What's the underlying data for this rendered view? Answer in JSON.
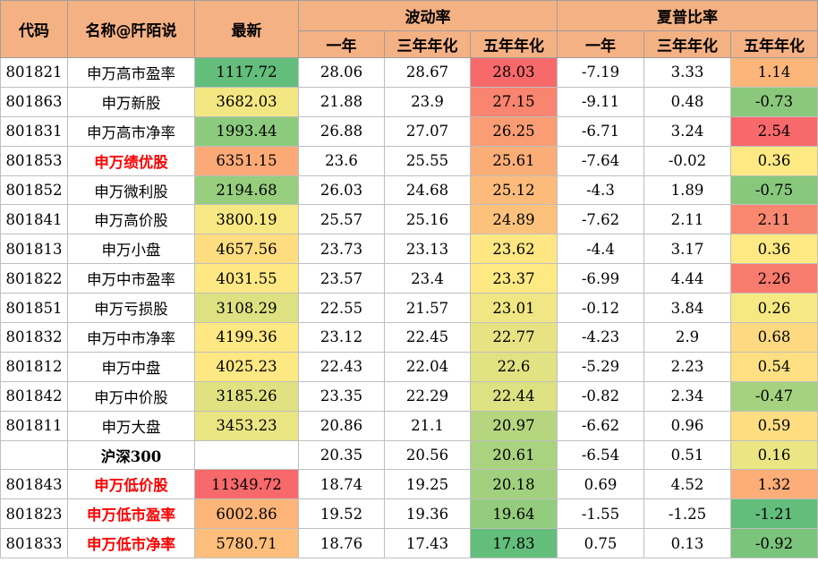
{
  "headers": {
    "code": "代码",
    "name": "名称@阡陌说",
    "latest": "最新",
    "volatility": "波动率",
    "sharpe": "夏普比率",
    "sub": [
      "一年",
      "三年年化",
      "五年年化",
      "一年",
      "三年年化",
      "五年年化"
    ]
  },
  "rows": [
    {
      "code": "801821",
      "name": "申万高市盈率",
      "name_style": "normal",
      "latest": "1117.72",
      "vol_1y": "28.06",
      "vol_3y": "28.67",
      "vol_5y": "28.03",
      "sh_1y": "-7.19",
      "sh_3y": "3.33",
      "sh_5y": "1.14",
      "colors": {
        "latest": "#63be7b",
        "vol_5y": "#f8696b",
        "sh_5y": "#fdb67a"
      }
    },
    {
      "code": "801863",
      "name": "申万新股",
      "name_style": "normal",
      "latest": "3682.03",
      "vol_1y": "21.88",
      "vol_3y": "23.9",
      "vol_5y": "27.15",
      "sh_1y": "-9.11",
      "sh_3y": "0.48",
      "sh_5y": "-0.73",
      "colors": {
        "latest": "#f2e783",
        "vol_5y": "#f9846f",
        "sh_5y": "#8ac97c"
      }
    },
    {
      "code": "801831",
      "name": "申万高市净率",
      "name_style": "normal",
      "latest": "1993.44",
      "vol_1y": "26.88",
      "vol_3y": "27.07",
      "vol_5y": "26.25",
      "sh_1y": "-6.71",
      "sh_3y": "3.24",
      "sh_5y": "2.54",
      "colors": {
        "latest": "#8ccb7d",
        "vol_5y": "#fa9d74",
        "sh_5y": "#f8696b"
      }
    },
    {
      "code": "801853",
      "name": "申万绩优股",
      "name_style": "red",
      "latest": "6351.15",
      "vol_1y": "23.6",
      "vol_3y": "25.55",
      "vol_5y": "25.61",
      "sh_1y": "-7.64",
      "sh_3y": "-0.02",
      "sh_5y": "0.36",
      "colors": {
        "latest": "#fbaa77",
        "vol_5y": "#fbad78",
        "sh_5y": "#fee983"
      }
    },
    {
      "code": "801852",
      "name": "申万微利股",
      "name_style": "normal",
      "latest": "2194.68",
      "vol_1y": "26.03",
      "vol_3y": "24.68",
      "vol_5y": "25.12",
      "sh_1y": "-4.3",
      "sh_3y": "1.89",
      "sh_5y": "-0.75",
      "colors": {
        "latest": "#96ce7e",
        "vol_5y": "#fcbb7b",
        "sh_5y": "#88c87c"
      }
    },
    {
      "code": "801841",
      "name": "申万高价股",
      "name_style": "normal",
      "latest": "3800.19",
      "vol_1y": "25.57",
      "vol_3y": "25.16",
      "vol_5y": "24.89",
      "sh_1y": "-7.62",
      "sh_3y": "2.11",
      "sh_5y": "2.11",
      "colors": {
        "latest": "#f7e883",
        "vol_5y": "#fcc27c",
        "sh_5y": "#f98870"
      }
    },
    {
      "code": "801813",
      "name": "申万小盘",
      "name_style": "normal",
      "latest": "4657.56",
      "vol_1y": "23.73",
      "vol_3y": "23.13",
      "vol_5y": "23.62",
      "sh_1y": "-4.4",
      "sh_3y": "3.17",
      "sh_5y": "0.36",
      "colors": {
        "latest": "#fedd81",
        "vol_5y": "#fee783",
        "sh_5y": "#fee983"
      }
    },
    {
      "code": "801822",
      "name": "申万中市盈率",
      "name_style": "normal",
      "latest": "4031.55",
      "vol_1y": "23.57",
      "vol_3y": "23.4",
      "vol_5y": "23.37",
      "sh_1y": "-6.99",
      "sh_3y": "4.44",
      "sh_5y": "2.26",
      "colors": {
        "latest": "#fee883",
        "vol_5y": "#fee983",
        "sh_5y": "#f97b6e"
      }
    },
    {
      "code": "801851",
      "name": "申万亏损股",
      "name_style": "normal",
      "latest": "3108.29",
      "vol_1y": "22.55",
      "vol_3y": "21.57",
      "vol_5y": "23.01",
      "sh_1y": "-0.12",
      "sh_3y": "3.84",
      "sh_5y": "0.26",
      "colors": {
        "latest": "#dde182",
        "vol_5y": "#f0e683",
        "sh_5y": "#f6e883"
      }
    },
    {
      "code": "801832",
      "name": "申万中市净率",
      "name_style": "normal",
      "latest": "4199.36",
      "vol_1y": "23.12",
      "vol_3y": "22.45",
      "vol_5y": "22.77",
      "sh_1y": "-4.23",
      "sh_3y": "2.9",
      "sh_5y": "0.68",
      "colors": {
        "latest": "#fee883",
        "vol_5y": "#e7e382",
        "sh_5y": "#fed981"
      }
    },
    {
      "code": "801812",
      "name": "申万中盘",
      "name_style": "normal",
      "latest": "4025.23",
      "vol_1y": "22.43",
      "vol_3y": "22.04",
      "vol_5y": "22.6",
      "sh_1y": "-5.29",
      "sh_3y": "2.23",
      "sh_5y": "0.54",
      "colors": {
        "latest": "#fee883",
        "vol_5y": "#e1e282",
        "sh_5y": "#fee082"
      }
    },
    {
      "code": "801842",
      "name": "申万中价股",
      "name_style": "normal",
      "latest": "3185.26",
      "vol_1y": "23.35",
      "vol_3y": "22.29",
      "vol_5y": "22.44",
      "sh_1y": "-0.82",
      "sh_3y": "2.34",
      "sh_5y": "-0.47",
      "colors": {
        "latest": "#e0e282",
        "vol_5y": "#dce182",
        "sh_5y": "#a4d27f"
      }
    },
    {
      "code": "801811",
      "name": "申万大盘",
      "name_style": "normal",
      "latest": "3453.23",
      "vol_1y": "20.86",
      "vol_3y": "21.1",
      "vol_5y": "20.97",
      "sh_1y": "-6.62",
      "sh_3y": "0.96",
      "sh_5y": "0.59",
      "colors": {
        "latest": "#eae583",
        "vol_5y": "#b5d67f",
        "sh_5y": "#fedd81"
      }
    },
    {
      "code": "",
      "name": "沪深300",
      "name_style": "bold",
      "latest": "",
      "vol_1y": "20.35",
      "vol_3y": "20.56",
      "vol_5y": "20.61",
      "sh_1y": "-6.54",
      "sh_3y": "0.51",
      "sh_5y": "0.16",
      "colors": {
        "latest": "#ffffff",
        "vol_5y": "#aad37f",
        "sh_5y": "#ebe583"
      }
    },
    {
      "code": "801843",
      "name": "申万低价股",
      "name_style": "red",
      "latest": "11349.72",
      "vol_1y": "18.74",
      "vol_3y": "19.25",
      "vol_5y": "20.18",
      "sh_1y": "0.69",
      "sh_3y": "4.52",
      "sh_5y": "1.32",
      "colors": {
        "latest": "#f8696b",
        "vol_5y": "#a1d07e",
        "sh_5y": "#fcad78"
      }
    },
    {
      "code": "801823",
      "name": "申万低市盈率",
      "name_style": "red",
      "latest": "6002.86",
      "vol_1y": "19.52",
      "vol_3y": "19.36",
      "vol_5y": "19.64",
      "sh_1y": "-1.55",
      "sh_3y": "-1.25",
      "sh_5y": "-1.21",
      "colors": {
        "latest": "#fcb479",
        "vol_5y": "#93cc7d",
        "sh_5y": "#63be7b"
      }
    },
    {
      "code": "801833",
      "name": "申万低市净率",
      "name_style": "red",
      "latest": "5780.71",
      "vol_1y": "18.76",
      "vol_3y": "17.43",
      "vol_5y": "17.83",
      "sh_1y": "0.75",
      "sh_3y": "0.13",
      "sh_5y": "-0.92",
      "colors": {
        "latest": "#fdbd7b",
        "vol_5y": "#63be7b",
        "sh_5y": "#7bc47c"
      }
    }
  ]
}
